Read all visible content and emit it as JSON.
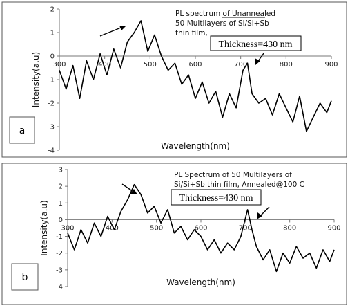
{
  "chart_data": [
    {
      "panel": "a",
      "type": "line",
      "annotation_lines": [
        "PL spectrum of Unannealed",
        "50 Multilayers of Si/Si+Sb",
        "thin film,"
      ],
      "underlined_word": "Unannealed",
      "thickness_label": "Thickness=430 nm",
      "xlabel": "Wavelength(nm)",
      "ylabel": "Intensity(a.u)",
      "xlim": [
        300,
        900
      ],
      "ylim": [
        -4,
        2
      ],
      "xticks": [
        300,
        400,
        500,
        600,
        700,
        800,
        900
      ],
      "yticks": [
        -4,
        -3,
        -2,
        -1,
        0,
        1,
        2
      ],
      "grid": false,
      "color": "#000000",
      "x": [
        300,
        315,
        330,
        345,
        360,
        375,
        390,
        405,
        420,
        435,
        450,
        465,
        480,
        495,
        510,
        525,
        540,
        555,
        570,
        585,
        600,
        615,
        630,
        645,
        660,
        675,
        690,
        705,
        715,
        725,
        740,
        755,
        770,
        785,
        800,
        815,
        830,
        845,
        860,
        875,
        890,
        900
      ],
      "y": [
        -0.6,
        -1.4,
        -0.4,
        -1.8,
        -0.2,
        -1.0,
        0.1,
        -0.8,
        0.3,
        -0.5,
        0.6,
        1.0,
        1.5,
        0.2,
        0.9,
        0.0,
        -0.6,
        -0.3,
        -1.2,
        -0.8,
        -1.8,
        -1.1,
        -2.0,
        -1.5,
        -2.6,
        -1.6,
        -2.2,
        -0.6,
        -0.3,
        -1.6,
        -2.0,
        -1.8,
        -2.5,
        -1.6,
        -2.2,
        -2.8,
        -1.7,
        -3.2,
        -2.6,
        -2.0,
        -2.4,
        -1.9
      ]
    },
    {
      "panel": "b",
      "type": "line",
      "annotation_lines": [
        "PL Spectrum of 50 Multilayers of",
        "Si/Si+Sb thin film, Annealed@100 C"
      ],
      "thickness_label": "Thickness=430 nm",
      "xlabel": "Wavelength(nm)",
      "ylabel": "Intensity(a.u)",
      "xlim": [
        300,
        900
      ],
      "ylim": [
        -4,
        3
      ],
      "xticks": [
        300,
        400,
        500,
        600,
        700,
        800,
        900
      ],
      "yticks": [
        -4,
        -3,
        -2,
        -1,
        0,
        1,
        2,
        3
      ],
      "grid": false,
      "color": "#000000",
      "x": [
        300,
        315,
        330,
        345,
        360,
        375,
        390,
        405,
        420,
        435,
        450,
        465,
        480,
        495,
        510,
        525,
        540,
        555,
        570,
        585,
        600,
        615,
        630,
        645,
        660,
        675,
        690,
        705,
        715,
        725,
        740,
        755,
        770,
        785,
        800,
        815,
        830,
        845,
        860,
        875,
        890,
        900
      ],
      "y": [
        -0.8,
        -1.8,
        -0.6,
        -1.4,
        -0.2,
        -1.0,
        0.2,
        -0.6,
        0.5,
        1.2,
        2.1,
        1.5,
        0.4,
        0.8,
        -0.2,
        0.6,
        -0.8,
        -0.4,
        -1.2,
        -0.6,
        -1.0,
        -1.8,
        -1.2,
        -2.0,
        -1.4,
        -1.8,
        -1.0,
        0.6,
        -0.6,
        -1.6,
        -2.4,
        -1.8,
        -3.1,
        -2.0,
        -2.6,
        -1.6,
        -2.3,
        -2.0,
        -2.9,
        -1.8,
        -2.5,
        -1.8
      ]
    }
  ],
  "panels": {
    "a": {
      "label": "a"
    },
    "b": {
      "label": "b"
    }
  }
}
